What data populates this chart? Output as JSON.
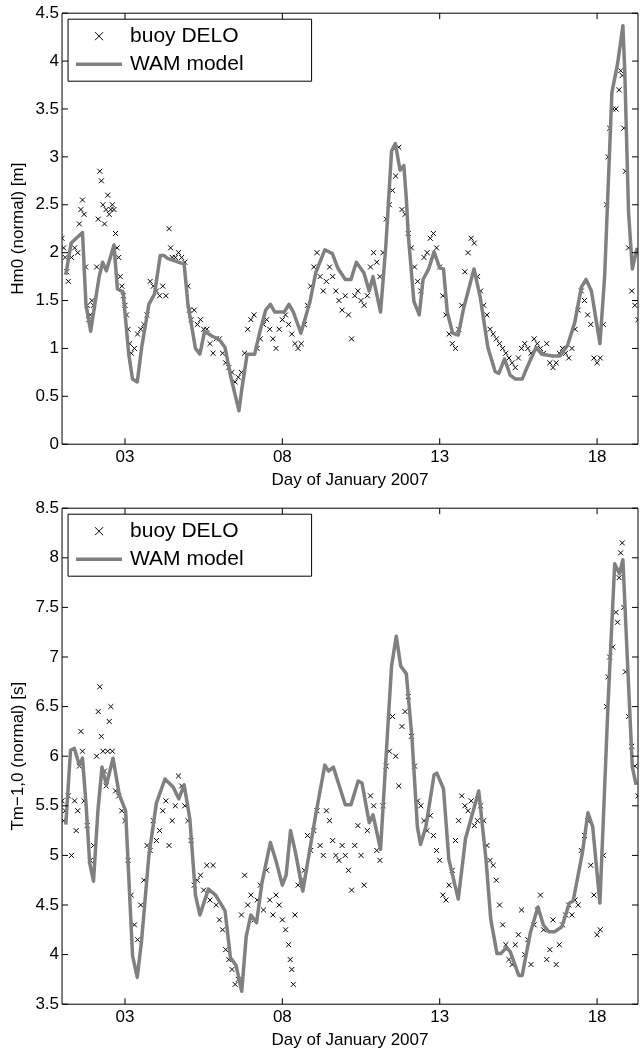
{
  "chart_data": [
    {
      "type": "scatter",
      "xlabel": "Day of January 2007",
      "ylabel": "Hm0 (normal) [m]",
      "xlim": [
        1,
        19.3
      ],
      "ylim": [
        0,
        4.5
      ],
      "xticks": [
        {
          "value": 3,
          "label": "03"
        },
        {
          "value": 8,
          "label": "08"
        },
        {
          "value": 13,
          "label": "13"
        },
        {
          "value": 18,
          "label": "18"
        }
      ],
      "yticks": [
        0,
        0.5,
        1,
        1.5,
        2,
        2.5,
        3,
        3.5,
        4,
        4.5
      ],
      "grid": false,
      "legend": "top left",
      "series": [
        {
          "name": "buoy DELO",
          "marker": "cross",
          "color": "#000000",
          "x": [
            1.0,
            1.05,
            1.1,
            1.15,
            1.2,
            1.3,
            1.4,
            1.5,
            1.55,
            1.6,
            1.65,
            1.7,
            1.75,
            1.8,
            1.85,
            1.9,
            1.95,
            2.0,
            2.1,
            2.15,
            2.2,
            2.25,
            2.3,
            2.35,
            2.4,
            2.45,
            2.5,
            2.55,
            2.6,
            2.65,
            2.7,
            2.75,
            2.8,
            2.85,
            2.9,
            2.95,
            3.0,
            3.05,
            3.1,
            3.15,
            3.2,
            3.3,
            3.4,
            3.5,
            3.6,
            3.7,
            3.8,
            3.9,
            4.0,
            4.1,
            4.2,
            4.3,
            4.4,
            4.45,
            4.5,
            4.6,
            4.7,
            4.8,
            4.9,
            5.0,
            5.05,
            5.1,
            5.2,
            5.3,
            5.4,
            5.5,
            5.6,
            5.7,
            5.8,
            5.9,
            6.0,
            6.1,
            6.2,
            6.3,
            6.4,
            6.5,
            6.6,
            6.7,
            6.8,
            6.9,
            7.0,
            7.1,
            7.2,
            7.3,
            7.4,
            7.5,
            7.6,
            7.7,
            7.8,
            7.9,
            8.0,
            8.1,
            8.2,
            8.3,
            8.4,
            8.5,
            8.6,
            8.7,
            8.8,
            8.9,
            9.0,
            9.1,
            9.2,
            9.3,
            9.4,
            9.5,
            9.6,
            9.7,
            9.8,
            9.9,
            10.0,
            10.1,
            10.2,
            10.3,
            10.4,
            10.5,
            10.6,
            10.7,
            10.8,
            10.9,
            11.0,
            11.1,
            11.2,
            11.3,
            11.4,
            11.5,
            11.6,
            11.7,
            11.8,
            11.9,
            12.0,
            12.1,
            12.2,
            12.3,
            12.4,
            12.5,
            12.6,
            12.7,
            12.8,
            12.9,
            13.0,
            13.1,
            13.2,
            13.3,
            13.4,
            13.5,
            13.6,
            13.7,
            13.8,
            13.9,
            14.0,
            14.1,
            14.2,
            14.3,
            14.4,
            14.5,
            14.6,
            14.7,
            14.8,
            14.9,
            15.0,
            15.1,
            15.2,
            15.3,
            15.4,
            15.5,
            15.6,
            15.7,
            15.8,
            15.9,
            16.0,
            16.1,
            16.2,
            16.3,
            16.4,
            16.5,
            16.6,
            16.7,
            16.8,
            16.9,
            17.0,
            17.1,
            17.2,
            17.3,
            17.4,
            17.5,
            17.6,
            17.7,
            17.8,
            17.9,
            18.0,
            18.1,
            18.2,
            18.3,
            18.35,
            18.4,
            18.5,
            18.6,
            18.7,
            18.75,
            18.8,
            18.85,
            18.9,
            19.0,
            19.1,
            19.2,
            19.3
          ],
          "values": [
            2.15,
            2.05,
            1.95,
            1.8,
            1.7,
            1.95,
            2.05,
            2.0,
            2.3,
            2.45,
            2.55,
            2.4,
            1.85,
            1.45,
            1.3,
            1.35,
            1.5,
            1.45,
            1.85,
            2.35,
            2.85,
            2.75,
            2.5,
            2.3,
            2.45,
            2.6,
            2.4,
            2.45,
            2.5,
            2.45,
            2.2,
            2.05,
            1.95,
            1.75,
            1.65,
            1.55,
            1.45,
            1.35,
            1.2,
            1.05,
            0.95,
            1.0,
            1.15,
            1.2,
            1.25,
            1.35,
            1.7,
            1.65,
            1.6,
            1.55,
            1.65,
            1.55,
            2.25,
            2.05,
            1.95,
            1.95,
            2.0,
            1.95,
            1.9,
            1.65,
            1.4,
            1.3,
            1.4,
            1.25,
            1.3,
            1.2,
            1.2,
            1.05,
            0.95,
            1.1,
            1.1,
            0.95,
            0.85,
            0.8,
            0.75,
            0.65,
            0.7,
            0.75,
            0.95,
            1.2,
            1.3,
            1.35,
            1.0,
            1.1,
            1.25,
            1.3,
            1.2,
            1.1,
            1.0,
            1.2,
            1.3,
            1.35,
            1.25,
            1.15,
            1.05,
            1.0,
            1.05,
            1.25,
            1.45,
            1.65,
            1.85,
            2.0,
            1.75,
            1.6,
            1.7,
            1.85,
            1.75,
            1.6,
            1.5,
            1.4,
            1.55,
            1.35,
            1.1,
            1.55,
            1.6,
            1.5,
            1.45,
            1.55,
            1.85,
            2.0,
            1.9,
            1.75,
            2.0,
            2.35,
            2.5,
            2.65,
            2.8,
            3.1,
            2.45,
            2.4,
            2.2,
            2.05,
            1.85,
            1.7,
            1.6,
            1.95,
            2.0,
            2.15,
            2.2,
            2.05,
            1.85,
            1.55,
            1.35,
            1.15,
            1.05,
            1.0,
            1.2,
            1.45,
            1.8,
            2.0,
            2.15,
            2.1,
            1.75,
            1.6,
            1.45,
            1.35,
            1.2,
            1.15,
            1.1,
            1.05,
            1.0,
            0.95,
            0.9,
            0.85,
            0.8,
            0.9,
            1.0,
            1.05,
            1.0,
            0.95,
            1.1,
            1.05,
            1.0,
            0.95,
            1.05,
            0.85,
            0.8,
            0.85,
            0.95,
            1.0,
            0.95,
            0.9,
            1.0,
            1.2,
            1.4,
            1.6,
            1.5,
            1.35,
            1.25,
            0.9,
            0.85,
            0.9,
            1.25,
            2.5,
            3.0,
            3.3,
            3.5,
            3.5,
            3.7,
            3.9,
            3.85,
            3.3,
            2.85,
            2.05,
            1.6,
            1.45,
            1.3
          ]
        },
        {
          "name": "WAM model",
          "type": "line",
          "color": "#808080",
          "x": [
            1.12,
            1.29,
            1.65,
            1.76,
            1.91,
            2.18,
            2.29,
            2.41,
            2.65,
            2.76,
            2.94,
            3.12,
            3.24,
            3.39,
            3.53,
            3.76,
            3.94,
            4.12,
            4.24,
            4.35,
            4.88,
            5.0,
            5.24,
            5.38,
            5.53,
            5.76,
            6.0,
            6.18,
            6.35,
            6.62,
            6.71,
            6.88,
            7.12,
            7.29,
            7.47,
            7.62,
            7.76,
            8.06,
            8.21,
            8.35,
            8.59,
            8.88,
            9.06,
            9.35,
            9.59,
            9.76,
            10.0,
            10.18,
            10.35,
            10.59,
            10.76,
            10.88,
            11.12,
            11.29,
            11.47,
            11.59,
            11.74,
            11.86,
            11.94,
            12.0,
            12.18,
            12.35,
            12.47,
            12.65,
            12.82,
            13.0,
            13.12,
            13.24,
            13.41,
            13.59,
            13.76,
            14.09,
            14.29,
            14.53,
            14.76,
            14.88,
            15.06,
            15.24,
            15.41,
            15.62,
            15.76,
            16.06,
            16.24,
            16.59,
            16.82,
            17.06,
            17.29,
            17.5,
            17.65,
            17.82,
            18.09,
            18.24,
            18.47,
            18.65,
            18.82,
            18.88,
            19.0,
            19.12,
            19.27
          ],
          "values": [
            1.77,
            2.1,
            2.21,
            1.46,
            1.18,
            1.75,
            1.9,
            1.81,
            2.08,
            1.62,
            1.59,
            0.94,
            0.68,
            0.65,
            1.01,
            1.46,
            1.57,
            1.97,
            1.97,
            1.94,
            1.88,
            1.46,
            1.0,
            0.94,
            1.18,
            1.13,
            1.09,
            1.01,
            0.72,
            0.35,
            0.57,
            0.94,
            0.94,
            1.18,
            1.4,
            1.46,
            1.38,
            1.38,
            1.46,
            1.38,
            1.16,
            1.49,
            1.79,
            2.03,
            1.99,
            1.84,
            1.72,
            1.72,
            1.9,
            1.79,
            1.6,
            1.75,
            1.38,
            2.08,
            3.06,
            3.14,
            2.86,
            2.91,
            2.56,
            2.19,
            1.49,
            1.35,
            1.72,
            1.83,
            2.01,
            1.84,
            1.83,
            1.38,
            1.16,
            1.14,
            1.42,
            1.83,
            1.53,
            1.01,
            0.76,
            0.74,
            0.89,
            0.72,
            0.68,
            0.68,
            0.79,
            1.01,
            0.94,
            0.92,
            0.92,
            1.03,
            1.27,
            1.64,
            1.72,
            1.6,
            1.05,
            1.75,
            3.67,
            3.97,
            4.37,
            3.89,
            2.42,
            1.83,
            2.05
          ]
        }
      ]
    },
    {
      "type": "scatter",
      "xlabel": "Day of January 2007",
      "ylabel": "Tm−1,0 (normal) [s]",
      "xlim": [
        1,
        19.3
      ],
      "ylim": [
        3.5,
        8.5
      ],
      "xticks": [
        {
          "value": 3,
          "label": "03"
        },
        {
          "value": 8,
          "label": "08"
        },
        {
          "value": 13,
          "label": "13"
        },
        {
          "value": 18,
          "label": "18"
        }
      ],
      "yticks": [
        3.5,
        4,
        4.5,
        5,
        5.5,
        6,
        6.5,
        7,
        7.5,
        8,
        8.5
      ],
      "grid": false,
      "legend": "top left",
      "series": [
        {
          "name": "buoy DELO",
          "marker": "cross",
          "color": "#000000",
          "x": [
            1.0,
            1.05,
            1.1,
            1.2,
            1.3,
            1.4,
            1.45,
            1.5,
            1.55,
            1.6,
            1.65,
            1.7,
            1.8,
            1.9,
            2.0,
            2.1,
            2.15,
            2.2,
            2.25,
            2.3,
            2.35,
            2.4,
            2.45,
            2.5,
            2.55,
            2.6,
            2.7,
            2.8,
            2.9,
            3.0,
            3.1,
            3.2,
            3.3,
            3.4,
            3.5,
            3.6,
            3.7,
            3.8,
            3.9,
            4.0,
            4.1,
            4.2,
            4.3,
            4.4,
            4.5,
            4.6,
            4.7,
            4.8,
            4.9,
            5.0,
            5.1,
            5.2,
            5.3,
            5.4,
            5.5,
            5.6,
            5.7,
            5.8,
            5.9,
            6.0,
            6.1,
            6.2,
            6.3,
            6.4,
            6.5,
            6.6,
            6.7,
            6.8,
            6.9,
            7.0,
            7.1,
            7.2,
            7.3,
            7.4,
            7.5,
            7.6,
            7.7,
            7.8,
            7.9,
            8.0,
            8.1,
            8.2,
            8.25,
            8.3,
            8.35,
            8.4,
            8.5,
            8.6,
            8.7,
            8.8,
            8.9,
            9.0,
            9.1,
            9.2,
            9.3,
            9.4,
            9.5,
            9.6,
            9.7,
            9.8,
            9.9,
            10.0,
            10.1,
            10.2,
            10.3,
            10.4,
            10.5,
            10.6,
            10.7,
            10.8,
            10.9,
            11.0,
            11.1,
            11.2,
            11.3,
            11.4,
            11.5,
            11.6,
            11.7,
            11.8,
            11.9,
            12.0,
            12.1,
            12.2,
            12.3,
            12.4,
            12.5,
            12.6,
            12.7,
            12.8,
            12.9,
            13.0,
            13.1,
            13.2,
            13.3,
            13.4,
            13.5,
            13.6,
            13.7,
            13.8,
            13.9,
            14.0,
            14.1,
            14.2,
            14.3,
            14.4,
            14.5,
            14.6,
            14.7,
            14.8,
            14.9,
            15.0,
            15.1,
            15.2,
            15.3,
            15.4,
            15.5,
            15.6,
            15.7,
            15.8,
            15.9,
            16.0,
            16.1,
            16.2,
            16.3,
            16.4,
            16.5,
            16.6,
            16.7,
            16.8,
            16.9,
            17.0,
            17.1,
            17.2,
            17.3,
            17.4,
            17.5,
            17.6,
            17.7,
            17.8,
            17.9,
            18.0,
            18.1,
            18.2,
            18.3,
            18.35,
            18.4,
            18.5,
            18.6,
            18.65,
            18.7,
            18.75,
            18.8,
            18.85,
            18.9,
            19.0,
            19.1,
            19.2,
            19.3
          ],
          "values": [
            5.55,
            5.35,
            5.45,
            5.6,
            5.0,
            5.55,
            5.25,
            5.45,
            5.9,
            6.25,
            6.05,
            5.55,
            5.3,
            4.95,
            5.1,
            6.0,
            6.45,
            6.7,
            6.2,
            6.05,
            5.85,
            5.7,
            6.05,
            6.35,
            6.5,
            6.05,
            5.65,
            5.6,
            5.45,
            5.35,
            4.95,
            4.6,
            4.3,
            4.15,
            4.5,
            4.75,
            5.1,
            5.05,
            5.35,
            5.15,
            5.25,
            5.45,
            5.55,
            5.1,
            5.35,
            5.5,
            5.8,
            5.7,
            5.5,
            5.35,
            5.15,
            4.7,
            4.75,
            4.8,
            4.65,
            4.9,
            4.55,
            4.9,
            4.5,
            4.35,
            4.25,
            4.05,
            3.95,
            3.85,
            3.7,
            3.75,
            4.4,
            4.8,
            4.5,
            4.6,
            4.35,
            4.55,
            4.7,
            4.45,
            4.85,
            4.55,
            4.4,
            4.6,
            4.5,
            4.35,
            4.25,
            4.1,
            3.95,
            3.85,
            3.7,
            4.4,
            4.7,
            4.75,
            4.85,
            5.2,
            5.05,
            5.25,
            5.45,
            5.1,
            5.0,
            5.45,
            5.35,
            5.15,
            5.0,
            4.95,
            5.1,
            5.0,
            4.85,
            4.65,
            5.1,
            5.3,
            5.0,
            4.7,
            5.25,
            5.6,
            5.5,
            5.05,
            4.95,
            5.5,
            5.9,
            6.05,
            6.4,
            6.0,
            5.7,
            6.3,
            6.45,
            6.6,
            6.2,
            5.9,
            5.55,
            5.5,
            5.35,
            5.25,
            5.4,
            5.2,
            5.05,
            4.95,
            4.6,
            4.55,
            4.7,
            4.85,
            5.15,
            5.35,
            5.6,
            5.5,
            5.45,
            5.55,
            5.3,
            5.35,
            5.5,
            5.35,
            5.1,
            4.95,
            4.9,
            4.75,
            4.5,
            4.3,
            4.1,
            3.95,
            3.9,
            4.1,
            4.2,
            4.45,
            4.0,
            4.15,
            3.9,
            4.3,
            4.45,
            4.6,
            4.25,
            3.95,
            4.05,
            4.35,
            3.9,
            4.1,
            4.3,
            4.4,
            4.5,
            4.4,
            4.55,
            4.5,
            5.05,
            5.2,
            5.35,
            4.9,
            4.6,
            4.2,
            4.25,
            5.0,
            6.5,
            6.8,
            7.0,
            7.1,
            7.45,
            7.35,
            7.8,
            8.05,
            8.15,
            7.5,
            6.85,
            6.4,
            6.1,
            5.9,
            5.6
          ]
        },
        {
          "name": "WAM model",
          "type": "line",
          "color": "#808080",
          "x": [
            1.12,
            1.27,
            1.39,
            1.55,
            1.65,
            1.76,
            1.88,
            2.0,
            2.14,
            2.27,
            2.41,
            2.62,
            2.82,
            3.02,
            3.24,
            3.39,
            3.53,
            3.76,
            4.0,
            4.27,
            4.53,
            4.71,
            4.88,
            5.06,
            5.24,
            5.38,
            5.65,
            5.88,
            6.18,
            6.35,
            6.53,
            6.71,
            6.85,
            7.0,
            7.18,
            7.35,
            7.62,
            7.82,
            8.0,
            8.12,
            8.26,
            8.41,
            8.65,
            9.06,
            9.35,
            9.47,
            9.62,
            9.82,
            10.0,
            10.18,
            10.41,
            10.53,
            10.76,
            10.88,
            11.12,
            11.33,
            11.47,
            11.62,
            11.76,
            11.94,
            12.12,
            12.29,
            12.39,
            12.56,
            12.82,
            12.91,
            13.12,
            13.29,
            13.59,
            13.82,
            14.24,
            14.47,
            14.62,
            14.82,
            14.94,
            15.12,
            15.24,
            15.51,
            15.62,
            15.88,
            16.12,
            16.29,
            16.47,
            16.65,
            16.88,
            17.12,
            17.24,
            17.53,
            17.71,
            17.86,
            18.09,
            18.35,
            18.56,
            18.71,
            18.82,
            18.96,
            19.12,
            19.24
          ],
          "values": [
            5.31,
            6.06,
            6.08,
            5.91,
            5.98,
            5.53,
            4.92,
            4.74,
            5.45,
            5.89,
            5.71,
            5.98,
            5.61,
            5.45,
            3.99,
            3.77,
            4.15,
            5.0,
            5.53,
            5.77,
            5.69,
            5.57,
            5.71,
            5.37,
            4.6,
            4.4,
            4.66,
            4.6,
            4.44,
            3.97,
            3.89,
            3.63,
            4.18,
            4.4,
            4.32,
            4.72,
            5.13,
            4.92,
            4.7,
            4.8,
            5.25,
            5.04,
            4.64,
            5.41,
            5.91,
            5.85,
            5.89,
            5.69,
            5.51,
            5.51,
            5.75,
            5.73,
            5.33,
            5.41,
            5.06,
            6.18,
            6.91,
            7.21,
            6.91,
            6.83,
            6.18,
            5.29,
            5.11,
            5.29,
            5.81,
            5.83,
            5.67,
            4.96,
            4.56,
            5.17,
            5.65,
            4.96,
            4.36,
            4.01,
            4.01,
            4.07,
            4.03,
            3.79,
            3.79,
            4.22,
            4.48,
            4.3,
            4.23,
            4.23,
            4.28,
            4.52,
            4.54,
            5.02,
            5.43,
            5.29,
            4.52,
            6.54,
            7.94,
            7.84,
            7.98,
            6.99,
            5.89,
            5.71
          ]
        }
      ]
    }
  ]
}
